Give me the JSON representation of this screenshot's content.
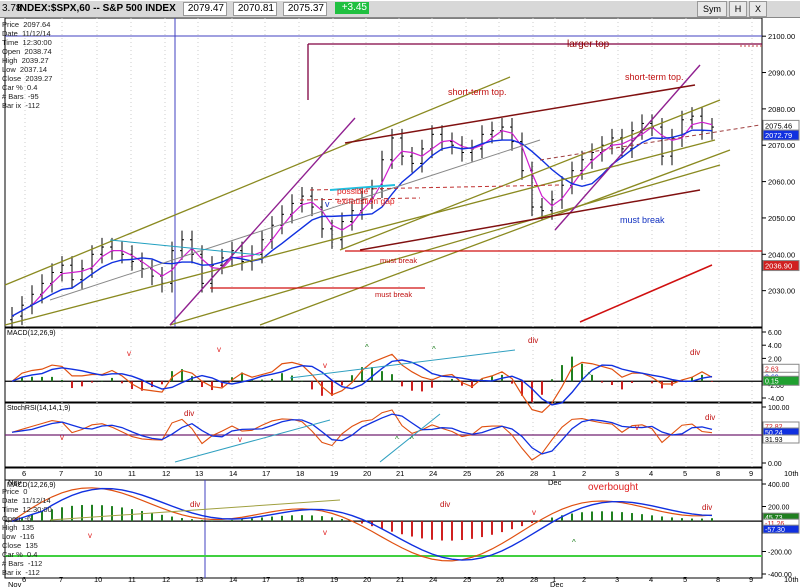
{
  "header": {
    "symbol": "INDEX:$SPX,60 -- S&P 500 INDEX",
    "values": [
      "2079.47",
      "2070.81",
      "2075.37",
      "+3.45"
    ],
    "left_value": "3.78",
    "button_symbol": "Sym",
    "button_labels": [
      "H",
      "X"
    ]
  },
  "price_stats": {
    "Price": "2097.64",
    "Date": "11/12/14",
    "Time": "12:30:00",
    "Open": "2038.74",
    "High": "2039.27",
    "Low": "2037.14",
    "Close": "2039.27",
    "Car %": "0.4",
    "# Bars": "-95",
    "Bar ix": "-112"
  },
  "lower_stats": {
    "Price": "0",
    "Date": "11/12/14",
    "Time": "12:30:00",
    "Open": "-6",
    "High": "135",
    "Low": "-116",
    "Close": "135",
    "Car %": "0.4",
    "# Bars": "-112",
    "Bar ix": "-112"
  },
  "chart_data": {
    "type": "candlestick",
    "title": "INDEX:$SPX,60 -- S&P 500 INDEX",
    "y_ticks": [
      2030,
      2040,
      2050,
      2060,
      2070,
      2080,
      2090,
      2100
    ],
    "ylim": [
      2020,
      2105
    ],
    "x_day_labels": [
      "6",
      "7",
      "10",
      "11",
      "12",
      "13",
      "14",
      "17",
      "18",
      "19",
      "20",
      "21",
      "24",
      "25",
      "26",
      "28",
      "1",
      "2",
      "3",
      "4",
      "5",
      "8",
      "9",
      "10th"
    ],
    "x_sublabels": {
      "Nov": "Nov",
      "Dec": "Dec"
    },
    "price_tags": [
      "2075.46",
      "2072.79",
      "2036.90"
    ],
    "close_series": [
      2023,
      2026,
      2029,
      2032,
      2035,
      2037,
      2033,
      2036,
      2040,
      2042,
      2041,
      2040,
      2038,
      2036,
      2034,
      2032,
      2041,
      2044,
      2040,
      2032,
      2037,
      2039,
      2041,
      2038,
      2040,
      2044,
      2048,
      2051,
      2054,
      2056,
      2053,
      2047,
      2044,
      2049,
      2052,
      2055,
      2058,
      2066,
      2072,
      2067,
      2065,
      2069,
      2073,
      2071,
      2070,
      2068,
      2069,
      2073,
      2074,
      2075,
      2071,
      2063,
      2053,
      2052,
      2055,
      2059,
      2063,
      2066,
      2068,
      2070,
      2072,
      2069,
      2074,
      2076,
      2075,
      2067,
      2072,
      2077,
      2078,
      2074,
      2075
    ],
    "annotations": {
      "larger_top": "larger top",
      "short_term_top_1": "short-term top.",
      "short_term_top_2": "short-term top.",
      "possible": "possible",
      "exhaustion_gap": "exhaustion gap",
      "must_break_1": "must break",
      "must_break_2": "must break",
      "must_break_3": "must break",
      "v_label": "v"
    },
    "macd": {
      "label": "MACD(12,26,9)",
      "y_ticks": [
        "6.00",
        "4.00",
        "2.00",
        "0.00",
        "-2.00",
        "-4.00"
      ],
      "tags": [
        "2.63",
        "2.69",
        "0.15"
      ],
      "marks": [
        "v",
        "v",
        "v",
        "^",
        "^",
        "div",
        "^",
        "div"
      ]
    },
    "stochrsi": {
      "label": "StochRSI(14,14,1,9)",
      "y_ticks": [
        "100.00",
        "50.00",
        "0.00"
      ],
      "tags": [
        "72.82",
        "50.24",
        "31.93"
      ],
      "marks": [
        "div",
        "v",
        "v",
        "^",
        "^",
        "v",
        "div"
      ]
    },
    "macd_daily": {
      "label": "MACD(12,26,9)",
      "y_ticks": [
        "400.00",
        "200.00",
        "0.00",
        "-200.00",
        "-400.00"
      ],
      "tags": [
        "45.73",
        "-11.26",
        "-57.30"
      ],
      "annotation": "overbought",
      "marks": [
        "div",
        "v",
        "v",
        "^",
        "v",
        "div",
        "div"
      ]
    }
  }
}
